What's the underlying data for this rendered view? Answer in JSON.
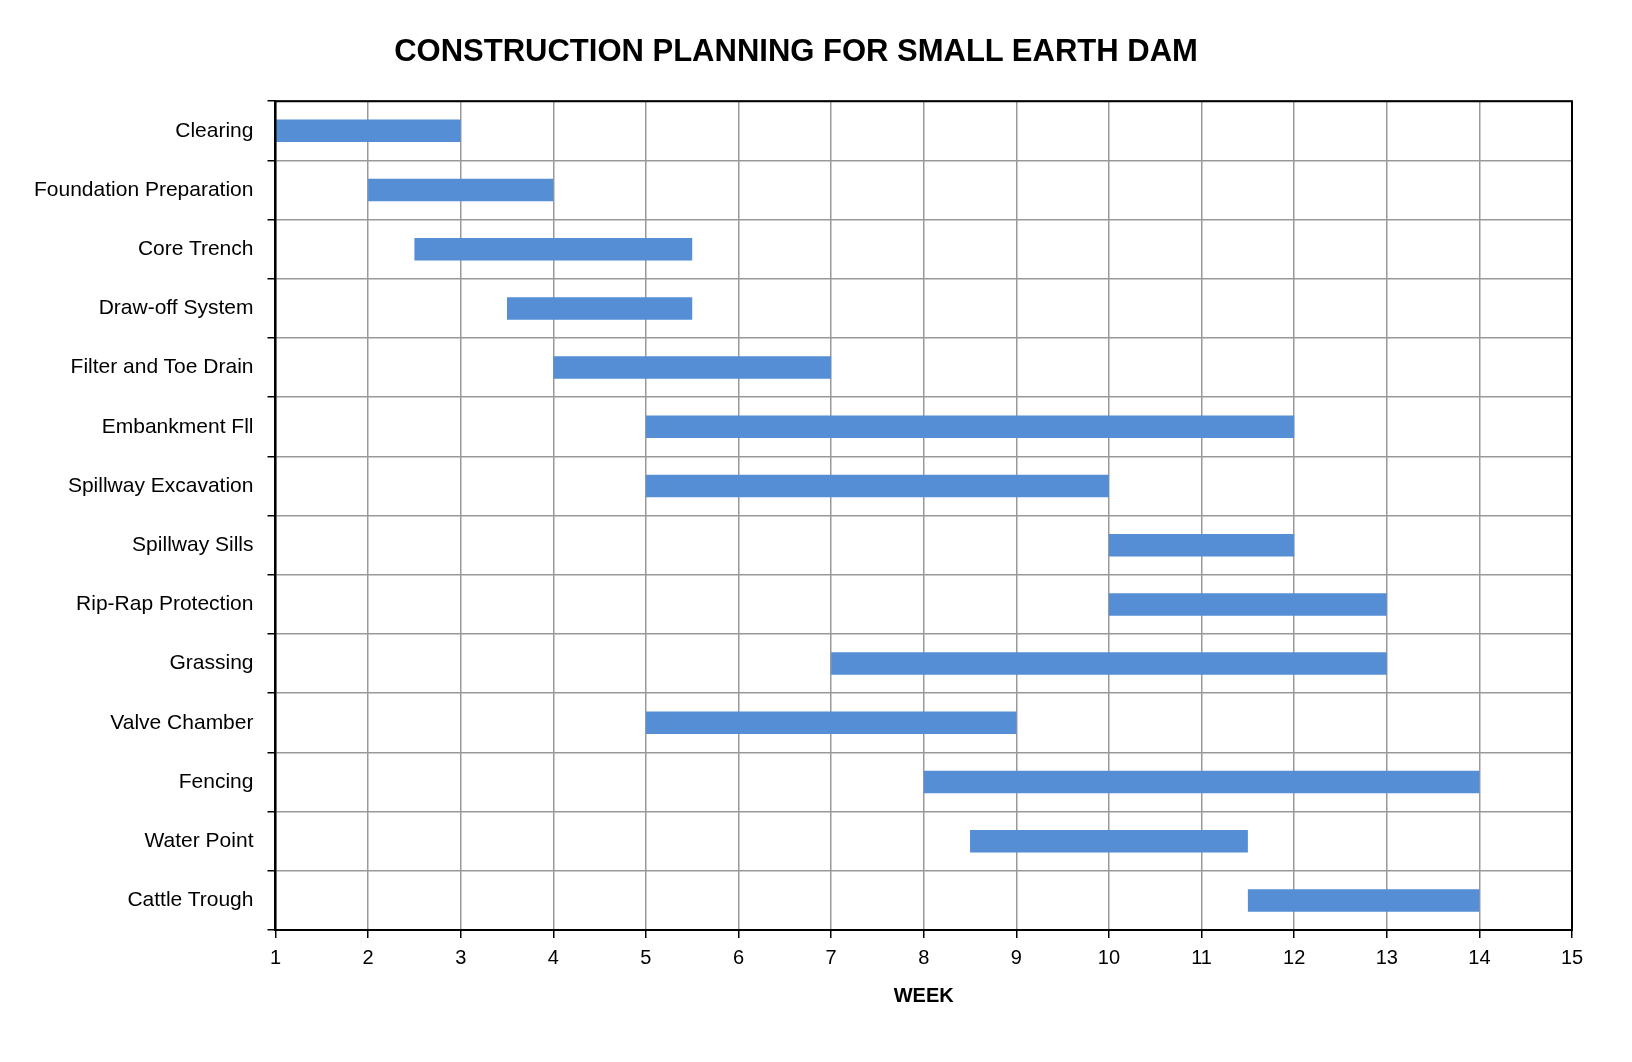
{
  "chart_data": {
    "type": "bar",
    "orientation": "horizontal",
    "title": "CONSTRUCTION PLANNING FOR SMALL EARTH DAM",
    "xlabel": "WEEK",
    "categories": [
      "Clearing",
      "Foundation Preparation",
      "Core Trench",
      "Draw-off System",
      "Filter and Toe Drain",
      "Embankment Fll",
      "Spillway Excavation",
      "Spillway Sills",
      "Rip-Rap Protection",
      "Grassing",
      "Valve Chamber",
      "Fencing",
      "Water Point",
      "Cattle Trough"
    ],
    "base": [
      1,
      2,
      2.5,
      3.5,
      4,
      5,
      5,
      10,
      10,
      7,
      5,
      8,
      8.5,
      11.5
    ],
    "values": [
      2,
      2,
      3,
      2,
      3,
      7,
      5,
      2,
      3,
      6,
      4,
      6,
      3,
      2.5
    ],
    "color": "#558ed5",
    "xlim": [
      1,
      15
    ],
    "xticks": [
      1,
      2,
      3,
      4,
      5,
      6,
      7,
      8,
      9,
      10,
      11,
      12,
      13,
      14,
      15
    ],
    "grid": true
  }
}
